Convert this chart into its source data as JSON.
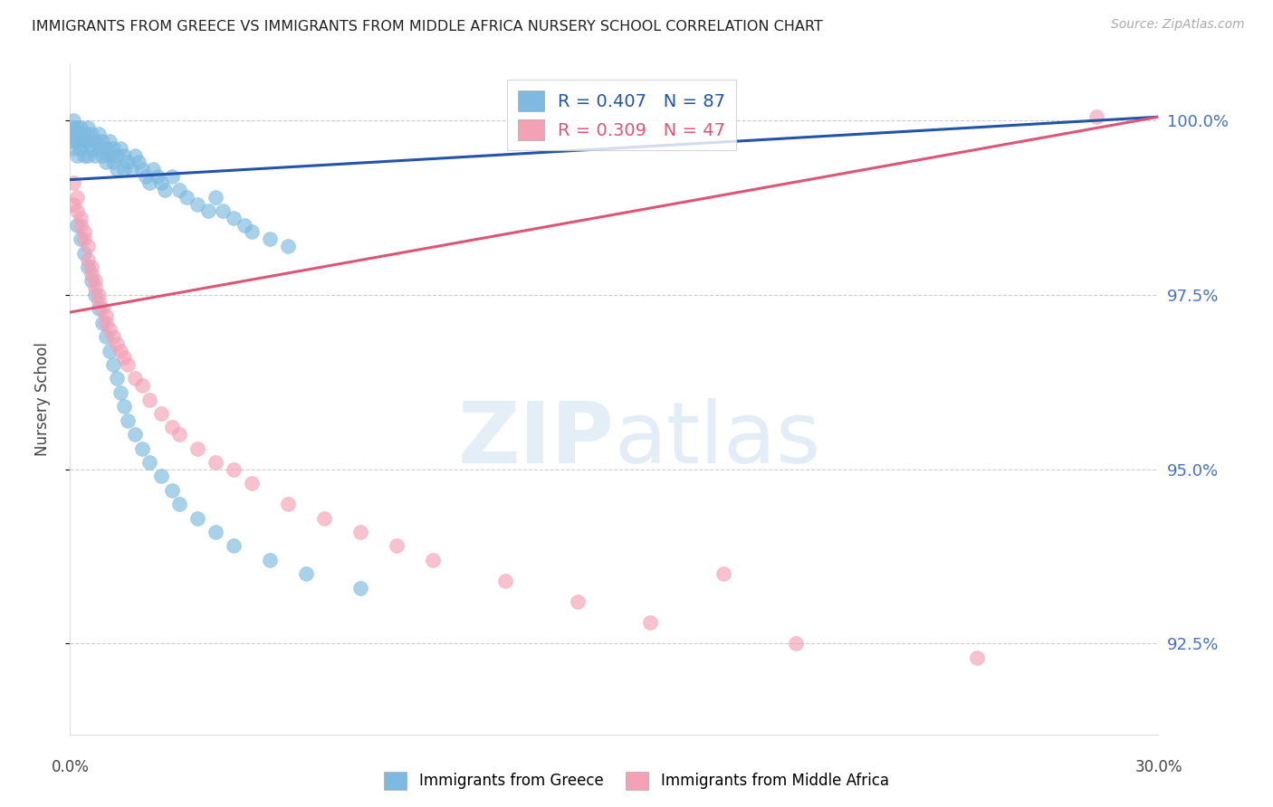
{
  "title": "IMMIGRANTS FROM GREECE VS IMMIGRANTS FROM MIDDLE AFRICA NURSERY SCHOOL CORRELATION CHART",
  "source": "Source: ZipAtlas.com",
  "ylabel": "Nursery School",
  "yticks": [
    92.5,
    95.0,
    97.5,
    100.0
  ],
  "ytick_labels": [
    "92.5%",
    "95.0%",
    "97.5%",
    "100.0%"
  ],
  "xmin": 0.0,
  "xmax": 0.3,
  "ymin": 91.2,
  "ymax": 100.8,
  "legend_blue_r": "R = 0.407",
  "legend_blue_n": "N = 87",
  "legend_pink_r": "R = 0.309",
  "legend_pink_n": "N = 47",
  "blue_color": "#7db9e0",
  "pink_color": "#f4a0b5",
  "blue_line_color": "#2255aa",
  "pink_line_color": "#dd5577",
  "ytick_color": "#4472c4",
  "blue_line_x": [
    0.0,
    0.3
  ],
  "blue_line_y": [
    99.15,
    100.05
  ],
  "pink_line_x": [
    0.0,
    0.3
  ],
  "pink_line_y": [
    97.25,
    100.05
  ],
  "blue_x": [
    0.001,
    0.001,
    0.001,
    0.001,
    0.001,
    0.002,
    0.002,
    0.002,
    0.002,
    0.003,
    0.003,
    0.003,
    0.004,
    0.004,
    0.004,
    0.005,
    0.005,
    0.005,
    0.006,
    0.006,
    0.007,
    0.007,
    0.008,
    0.008,
    0.009,
    0.009,
    0.01,
    0.01,
    0.011,
    0.011,
    0.012,
    0.012,
    0.013,
    0.013,
    0.014,
    0.015,
    0.015,
    0.016,
    0.017,
    0.018,
    0.019,
    0.02,
    0.021,
    0.022,
    0.023,
    0.024,
    0.025,
    0.026,
    0.028,
    0.03,
    0.032,
    0.035,
    0.038,
    0.04,
    0.042,
    0.045,
    0.048,
    0.05,
    0.055,
    0.06,
    0.002,
    0.003,
    0.004,
    0.005,
    0.006,
    0.007,
    0.008,
    0.009,
    0.01,
    0.011,
    0.012,
    0.013,
    0.014,
    0.015,
    0.016,
    0.018,
    0.02,
    0.022,
    0.025,
    0.028,
    0.03,
    0.035,
    0.04,
    0.045,
    0.055,
    0.065,
    0.08
  ],
  "blue_y": [
    99.9,
    99.8,
    99.7,
    99.6,
    100.0,
    99.9,
    99.8,
    99.7,
    99.5,
    99.9,
    99.7,
    99.6,
    99.8,
    99.7,
    99.5,
    99.9,
    99.7,
    99.5,
    99.8,
    99.6,
    99.7,
    99.5,
    99.8,
    99.6,
    99.7,
    99.5,
    99.6,
    99.4,
    99.7,
    99.5,
    99.6,
    99.4,
    99.5,
    99.3,
    99.6,
    99.5,
    99.3,
    99.4,
    99.3,
    99.5,
    99.4,
    99.3,
    99.2,
    99.1,
    99.3,
    99.2,
    99.1,
    99.0,
    99.2,
    99.0,
    98.9,
    98.8,
    98.7,
    98.9,
    98.7,
    98.6,
    98.5,
    98.4,
    98.3,
    98.2,
    98.5,
    98.3,
    98.1,
    97.9,
    97.7,
    97.5,
    97.3,
    97.1,
    96.9,
    96.7,
    96.5,
    96.3,
    96.1,
    95.9,
    95.7,
    95.5,
    95.3,
    95.1,
    94.9,
    94.7,
    94.5,
    94.3,
    94.1,
    93.9,
    93.7,
    93.5,
    93.3
  ],
  "pink_x": [
    0.001,
    0.001,
    0.002,
    0.002,
    0.003,
    0.003,
    0.004,
    0.004,
    0.005,
    0.005,
    0.006,
    0.006,
    0.007,
    0.007,
    0.008,
    0.008,
    0.009,
    0.01,
    0.01,
    0.011,
    0.012,
    0.013,
    0.014,
    0.015,
    0.016,
    0.018,
    0.02,
    0.022,
    0.025,
    0.028,
    0.03,
    0.035,
    0.04,
    0.045,
    0.05,
    0.06,
    0.07,
    0.08,
    0.09,
    0.1,
    0.12,
    0.14,
    0.16,
    0.18,
    0.2,
    0.25,
    0.283
  ],
  "pink_y": [
    99.1,
    98.8,
    98.9,
    98.7,
    98.6,
    98.5,
    98.4,
    98.3,
    98.2,
    98.0,
    97.9,
    97.8,
    97.7,
    97.6,
    97.5,
    97.4,
    97.3,
    97.2,
    97.1,
    97.0,
    96.9,
    96.8,
    96.7,
    96.6,
    96.5,
    96.3,
    96.2,
    96.0,
    95.8,
    95.6,
    95.5,
    95.3,
    95.1,
    95.0,
    94.8,
    94.5,
    94.3,
    94.1,
    93.9,
    93.7,
    93.4,
    93.1,
    92.8,
    93.5,
    92.5,
    92.3,
    100.05
  ]
}
